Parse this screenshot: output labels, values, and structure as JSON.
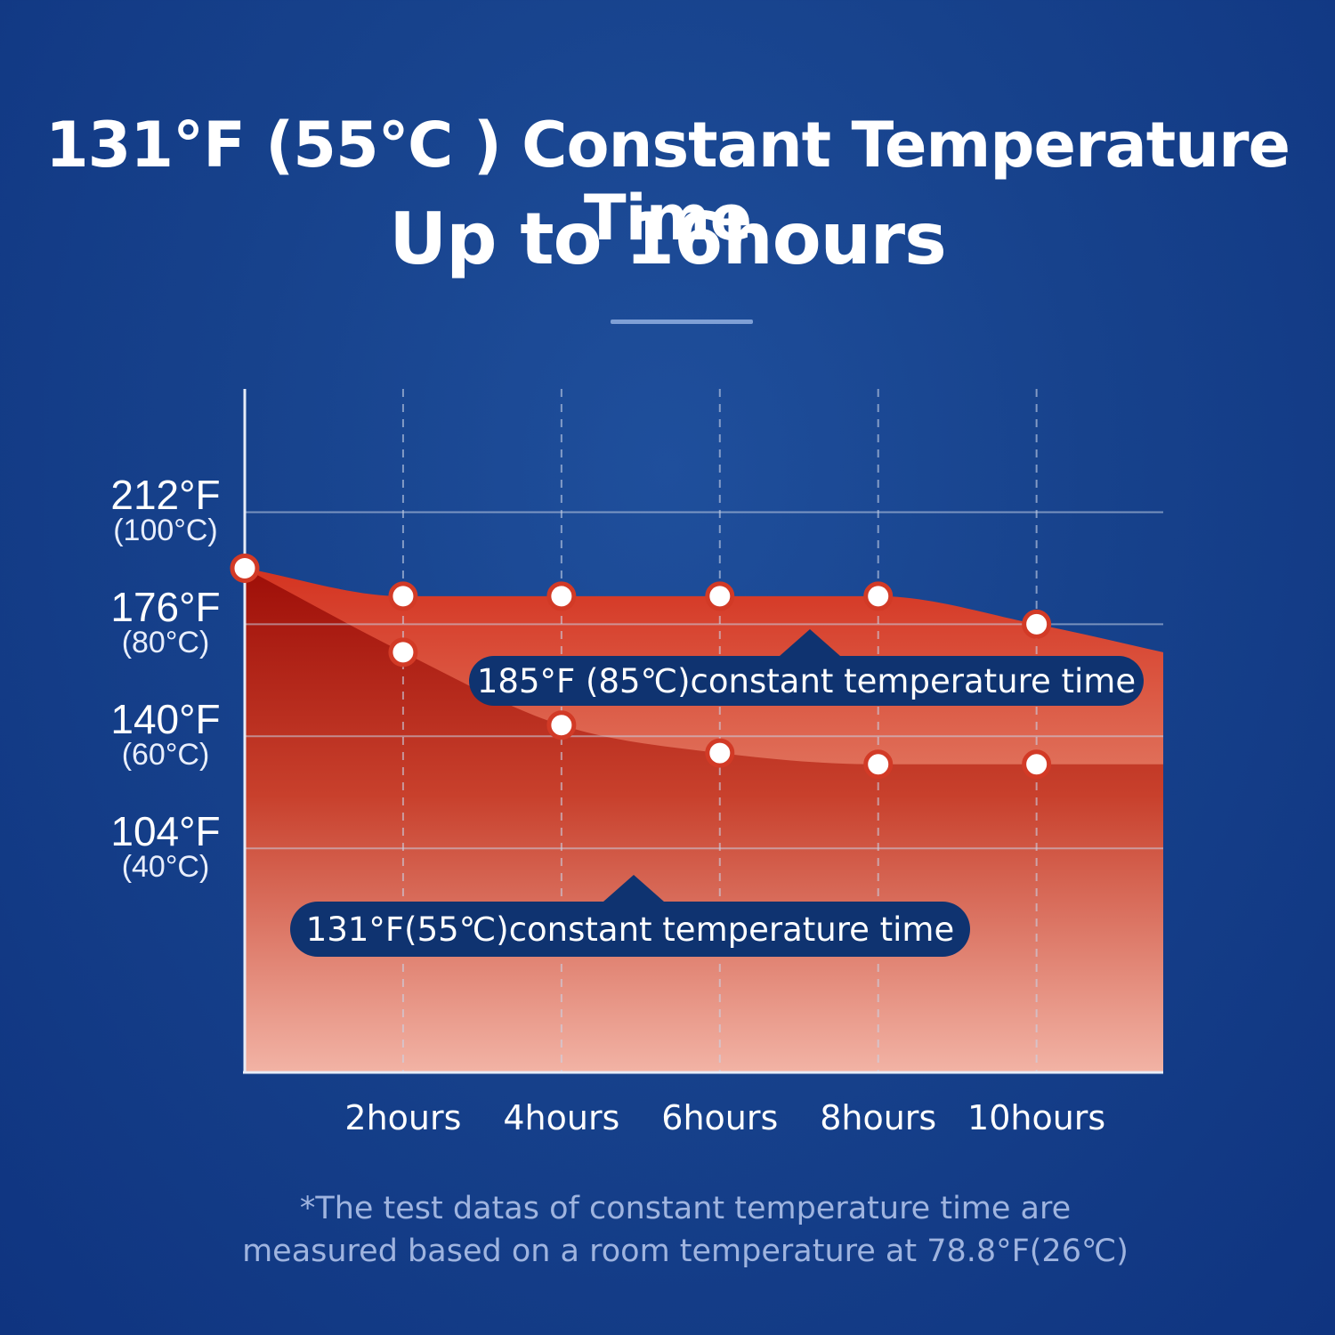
{
  "heading": {
    "line1": "131°F (55℃ ) Constant Temperature Time",
    "line2": "Up to 16hours"
  },
  "chart_data": {
    "type": "area",
    "x_unit": "hours",
    "x": [
      0,
      2,
      4,
      6,
      8,
      10
    ],
    "xlim": [
      0,
      11.6
    ],
    "categories": [
      "2hours",
      "4hours",
      "6hours",
      "8hours",
      "10hours"
    ],
    "ylim": [
      0,
      122
    ],
    "y_ticks": [
      {
        "value": 40,
        "f_label": "104°F",
        "c_label": "(40°C)"
      },
      {
        "value": 60,
        "f_label": "140°F",
        "c_label": "(60°C)"
      },
      {
        "value": 80,
        "f_label": "176°F",
        "c_label": "(80°C)"
      },
      {
        "value": 100,
        "f_label": "212°F",
        "c_label": "(100°C)"
      }
    ],
    "grid": true,
    "series": [
      {
        "name": "185°F (85℃)constant temperature time",
        "values": [
          90,
          85,
          85,
          85,
          85,
          80
        ],
        "end_value": 75,
        "color": "#d9452f"
      },
      {
        "name": "131°F(55℃)constant temperature time",
        "values": [
          90,
          75,
          62,
          57,
          55,
          55
        ],
        "end_value": 55,
        "color": "#b51d12"
      }
    ]
  },
  "footnote": {
    "line1": "*The test datas of constant temperature time are",
    "line2": "measured based on a room temperature at 78.8°F(26℃)"
  },
  "colors": {
    "background": "#17428c",
    "callout": "#0f3370",
    "marker_stroke": "#d23a26",
    "grid": "#c9d3e8"
  }
}
